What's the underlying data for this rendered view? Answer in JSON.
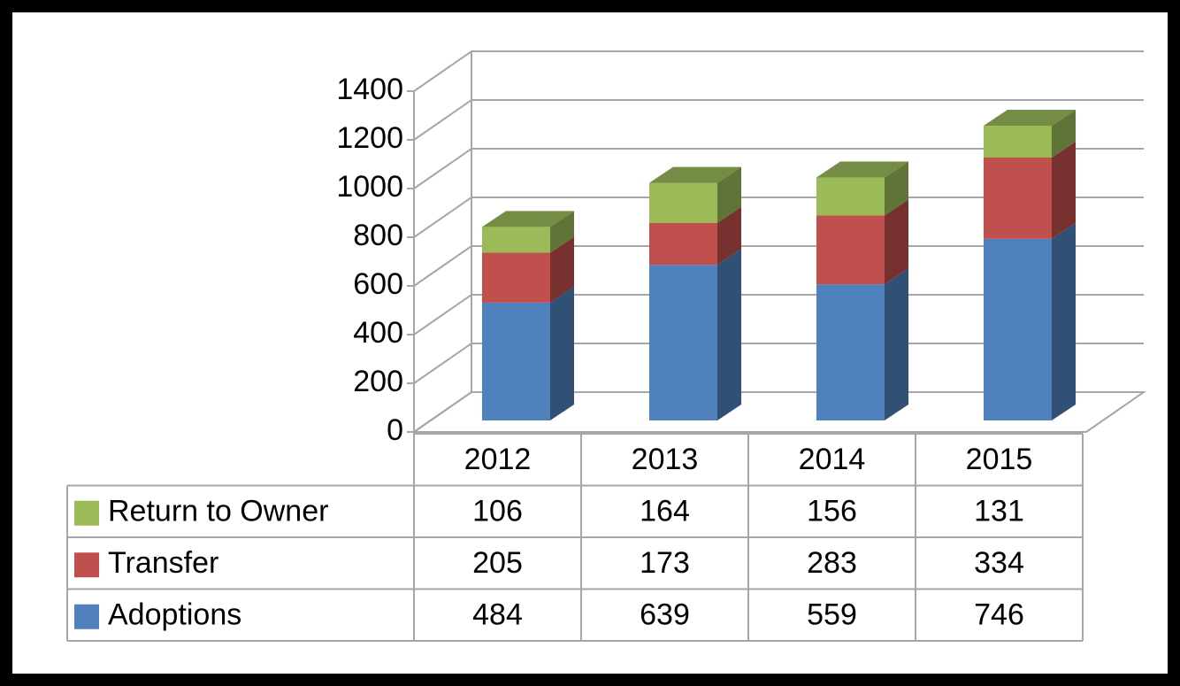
{
  "chart_data": {
    "type": "bar3d_stacked",
    "categories": [
      "2012",
      "2013",
      "2014",
      "2015"
    ],
    "series": [
      {
        "name": "Adoptions",
        "color": "#4f81bd",
        "values": [
          484,
          639,
          559,
          746
        ]
      },
      {
        "name": "Transfer",
        "color": "#c0504d",
        "values": [
          205,
          173,
          283,
          334
        ]
      },
      {
        "name": "Return to Owner",
        "color": "#9bbb59",
        "values": [
          106,
          164,
          156,
          131
        ]
      }
    ],
    "ylim": [
      0,
      1400
    ],
    "yticks": [
      0,
      200,
      400,
      600,
      800,
      1000,
      1200,
      1400
    ],
    "grid": true,
    "data_table": true
  }
}
